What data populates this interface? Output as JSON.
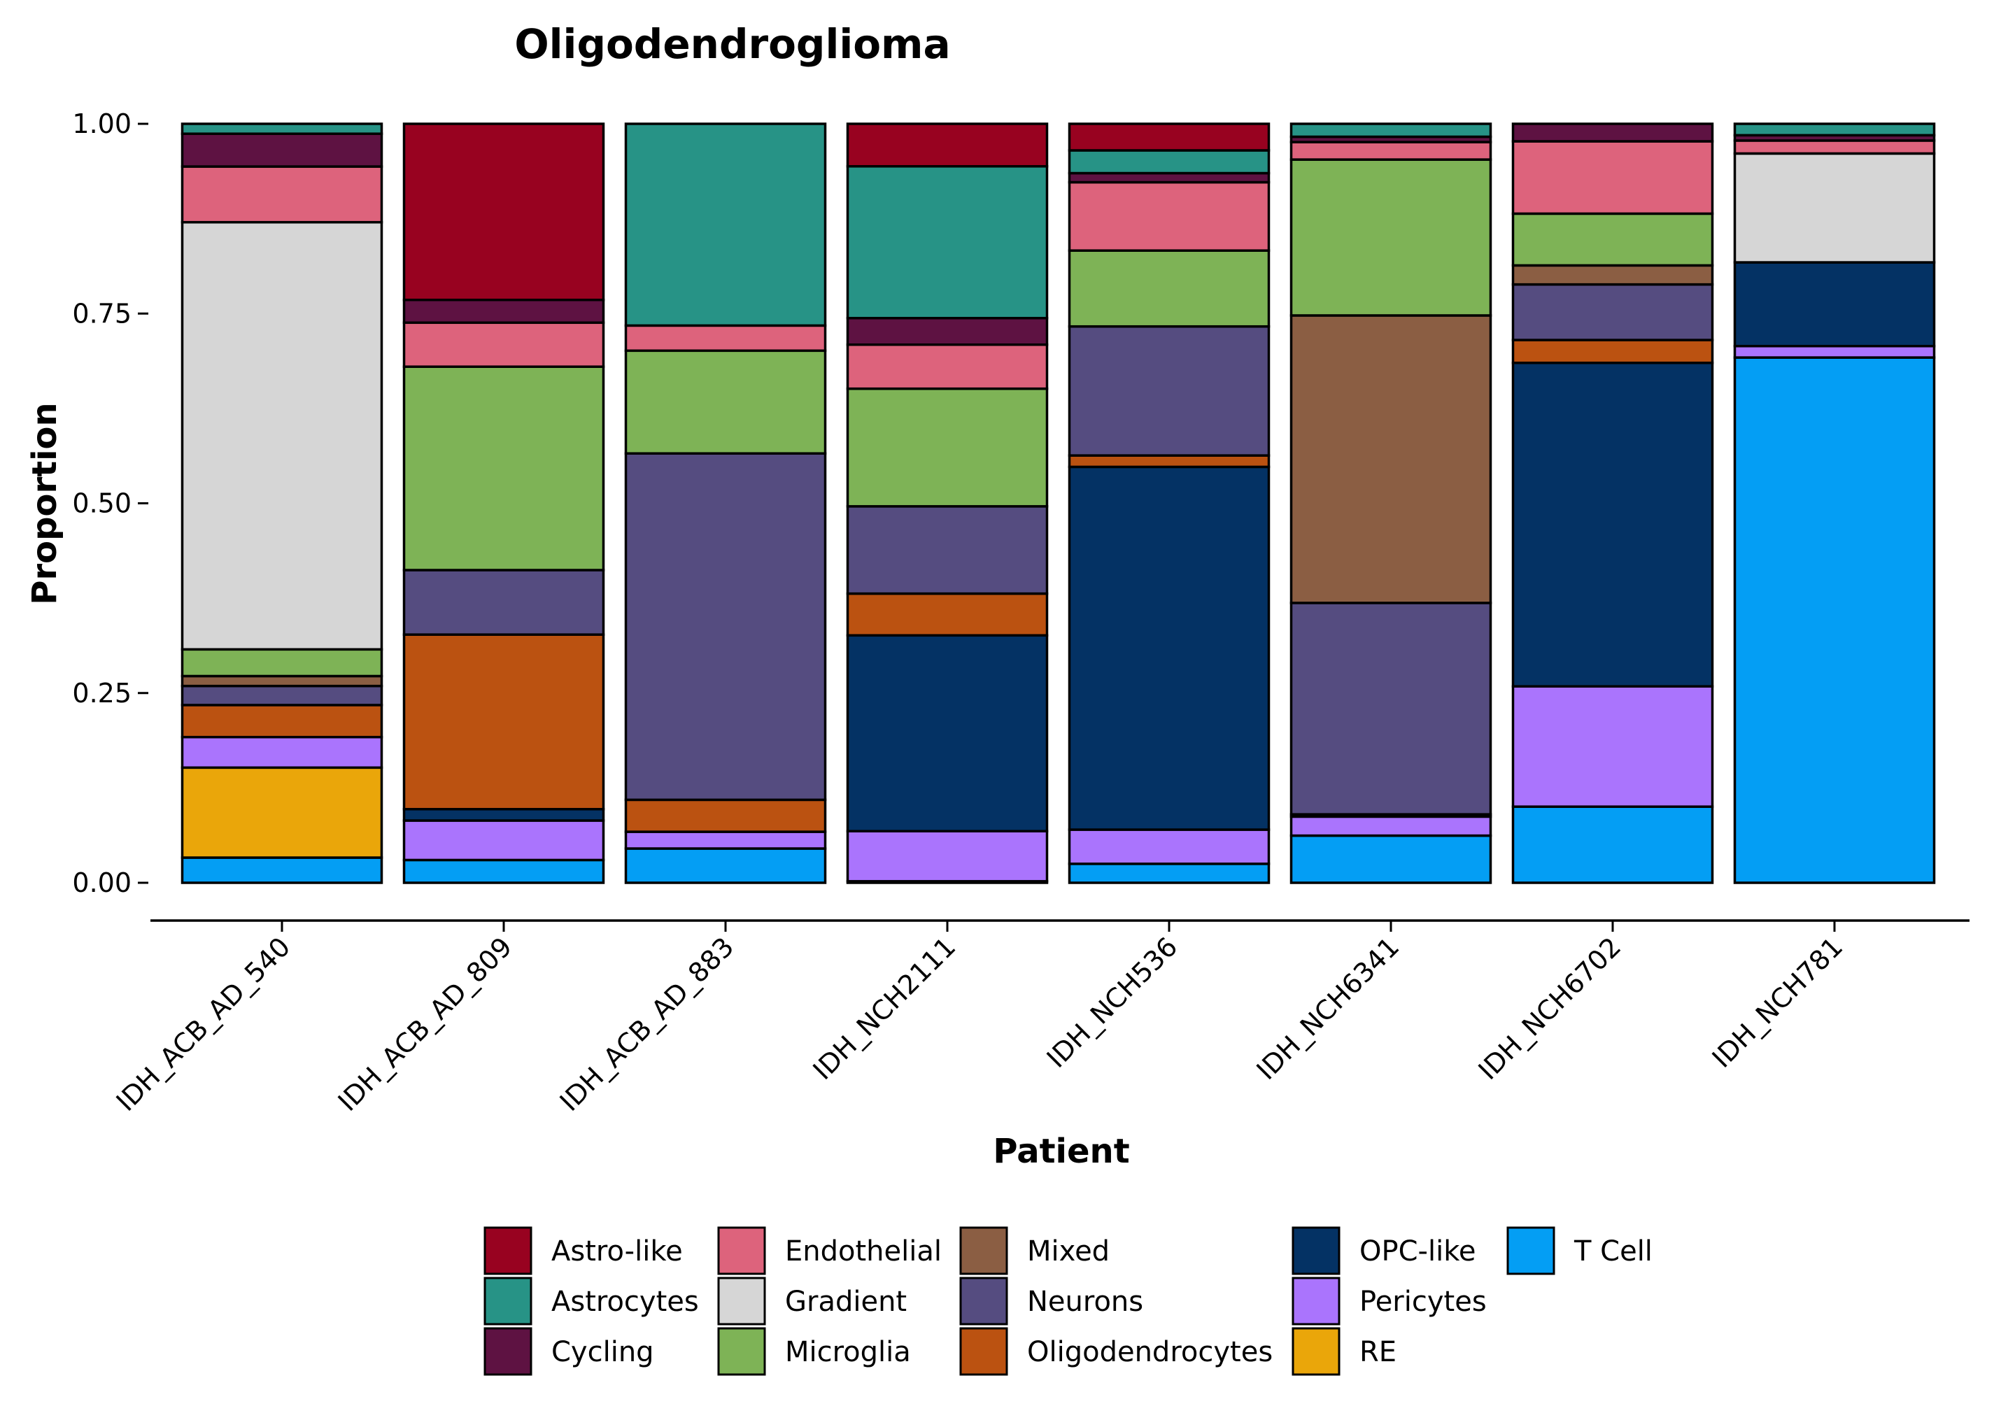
{
  "chart_data": {
    "type": "bar",
    "stacked": true,
    "title": "Oligodendroglioma",
    "xlabel": "Patient",
    "ylabel": "Proportion",
    "ylim": [
      0,
      1
    ],
    "yticks": [
      "0.00",
      "0.25",
      "0.50",
      "0.75",
      "1.00"
    ],
    "categories": [
      "IDH_ACB_AD_540",
      "IDH_ACB_AD_809",
      "IDH_ACB_AD_883",
      "IDH_NCH2111",
      "IDH_NCH536",
      "IDH_NCH6341",
      "IDH_NCH6702",
      "IDH_NCH781"
    ],
    "legend_position": "bottom",
    "series": [
      {
        "name": "T Cell",
        "color": "#049EF4",
        "values": [
          0.033,
          0.03,
          0.045,
          0.002,
          0.025,
          0.062,
          0.1,
          0.69
        ]
      },
      {
        "name": "RE",
        "color": "#EAA60A",
        "values": [
          0.118,
          0,
          0,
          0,
          0,
          0,
          0,
          0
        ]
      },
      {
        "name": "Pericytes",
        "color": "#AA74FD",
        "values": [
          0.04,
          0.052,
          0.022,
          0.066,
          0.045,
          0.025,
          0.158,
          0.015
        ]
      },
      {
        "name": "OPC-like",
        "color": "#043264",
        "values": [
          0,
          0.015,
          0,
          0.258,
          0.478,
          0.003,
          0.425,
          0.11
        ]
      },
      {
        "name": "Oligodendrocytes",
        "color": "#BB5211",
        "values": [
          0.042,
          0.23,
          0.042,
          0.055,
          0.015,
          0,
          0.03,
          0
        ]
      },
      {
        "name": "Neurons",
        "color": "#554C80",
        "values": [
          0.025,
          0.085,
          0.455,
          0.115,
          0.17,
          0.278,
          0.073,
          0
        ]
      },
      {
        "name": "Mixed",
        "color": "#8B5E43",
        "values": [
          0.013,
          0,
          0,
          0,
          0,
          0.378,
          0.025,
          0
        ]
      },
      {
        "name": "Microglia",
        "color": "#7EB356",
        "values": [
          0.035,
          0.268,
          0.135,
          0.155,
          0.1,
          0.205,
          0.068,
          0
        ]
      },
      {
        "name": "Gradient",
        "color": "#D6D6D6",
        "values": [
          0.56,
          0,
          0,
          0,
          0,
          0,
          0,
          0.143
        ]
      },
      {
        "name": "Endothelial",
        "color": "#DD637C",
        "values": [
          0.073,
          0.058,
          0.033,
          0.058,
          0.09,
          0.023,
          0.095,
          0.017
        ]
      },
      {
        "name": "Cycling",
        "color": "#5E1242",
        "values": [
          0.043,
          0.03,
          0,
          0.035,
          0.012,
          0.007,
          0.023,
          0.007
        ]
      },
      {
        "name": "Astrocytes",
        "color": "#279386",
        "values": [
          0.013,
          0,
          0.265,
          0.2,
          0.03,
          0.017,
          0,
          0.015
        ]
      },
      {
        "name": "Astro-like",
        "color": "#980220",
        "values": [
          0,
          0.232,
          0,
          0.056,
          0.035,
          0,
          0,
          0
        ]
      }
    ],
    "legend": [
      [
        "Astro-like",
        "Astrocytes",
        "Cycling"
      ],
      [
        "Endothelial",
        "Gradient",
        "Microglia"
      ],
      [
        "Mixed",
        "Neurons",
        "Oligodendrocytes"
      ],
      [
        "OPC-like",
        "Pericytes",
        "RE"
      ],
      [
        "T Cell"
      ]
    ]
  }
}
